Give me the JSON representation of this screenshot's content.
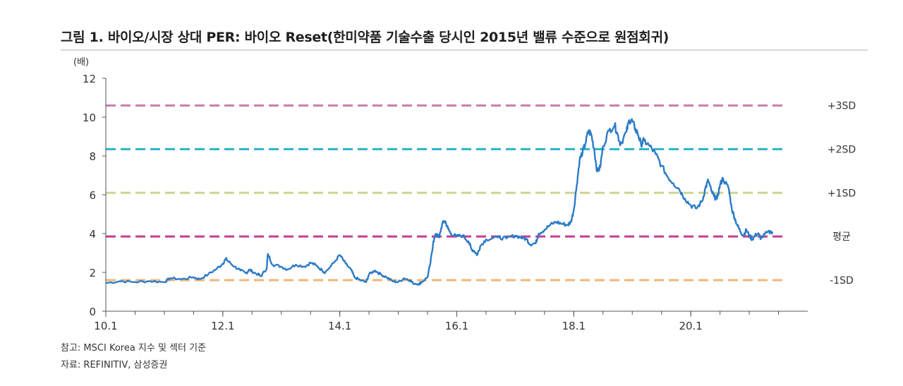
{
  "title": "그림 1. 바이오/시장 상대 PER: 바이오 Reset(한미약품 기술수출 당시인 2015년 밸류 수준으로 원점회귀)",
  "footnotes": {
    "note": "참고: MSCI Korea 지수 및 섹터 기준",
    "source": "자료: REFINITIV, 삼성증권"
  },
  "chart_data": {
    "type": "line",
    "title": "그림 1. 바이오/시장 상대 PER: 바이오 Reset(한미약품 기술수출 당시인 2015년 밸류 수준으로 원점회귀)",
    "ylabel": "(배)",
    "xlabel": "",
    "ylim": [
      0,
      12
    ],
    "xlim": [
      2010.0,
      2022.0
    ],
    "yticks": [
      "0",
      "2",
      "4",
      "6",
      "8",
      "10",
      "12"
    ],
    "xticks": [
      {
        "value": 2010.0,
        "label": "10.1"
      },
      {
        "value": 2012.0,
        "label": "12.1"
      },
      {
        "value": 2014.0,
        "label": "14.1"
      },
      {
        "value": 2016.0,
        "label": "16.1"
      },
      {
        "value": 2018.0,
        "label": "18.1"
      },
      {
        "value": 2020.0,
        "label": "20.1"
      }
    ],
    "grid": false,
    "line_color": "#2b7bc8",
    "reference_lines": [
      {
        "label": "+3SD",
        "value": 10.6,
        "color": "#c97fb0"
      },
      {
        "label": "+2SD",
        "value": 8.35,
        "color": "#29b5c9"
      },
      {
        "label": "+1SD",
        "value": 6.1,
        "color": "#c9d68f"
      },
      {
        "label": "평균",
        "value": 3.85,
        "color": "#c93a94"
      },
      {
        "label": "-1SD",
        "value": 1.6,
        "color": "#f0b67a"
      }
    ],
    "series": [
      {
        "points": [
          [
            2010.0,
            1.45
          ],
          [
            2010.25,
            1.55
          ],
          [
            2010.5,
            1.5
          ],
          [
            2010.75,
            1.55
          ],
          [
            2011.0,
            1.5
          ],
          [
            2011.1,
            1.7
          ],
          [
            2011.3,
            1.65
          ],
          [
            2011.5,
            1.75
          ],
          [
            2011.6,
            1.65
          ],
          [
            2011.75,
            1.9
          ],
          [
            2011.9,
            2.2
          ],
          [
            2012.0,
            2.45
          ],
          [
            2012.05,
            2.7
          ],
          [
            2012.1,
            2.55
          ],
          [
            2012.2,
            2.3
          ],
          [
            2012.3,
            2.1
          ],
          [
            2012.4,
            1.95
          ],
          [
            2012.45,
            2.15
          ],
          [
            2012.5,
            2.05
          ],
          [
            2012.6,
            1.9
          ],
          [
            2012.65,
            1.8
          ],
          [
            2012.75,
            2.2
          ],
          [
            2012.77,
            2.95
          ],
          [
            2012.85,
            2.4
          ],
          [
            2013.0,
            2.3
          ],
          [
            2013.1,
            2.15
          ],
          [
            2013.25,
            2.4
          ],
          [
            2013.4,
            2.3
          ],
          [
            2013.5,
            2.5
          ],
          [
            2013.6,
            2.35
          ],
          [
            2013.7,
            2.1
          ],
          [
            2013.75,
            2.0
          ],
          [
            2013.9,
            2.5
          ],
          [
            2014.0,
            2.9
          ],
          [
            2014.1,
            2.45
          ],
          [
            2014.2,
            2.1
          ],
          [
            2014.25,
            1.75
          ],
          [
            2014.35,
            1.6
          ],
          [
            2014.45,
            1.5
          ],
          [
            2014.5,
            1.9
          ],
          [
            2014.6,
            2.1
          ],
          [
            2014.7,
            1.9
          ],
          [
            2014.8,
            1.75
          ],
          [
            2014.9,
            1.55
          ],
          [
            2015.0,
            1.5
          ],
          [
            2015.1,
            1.7
          ],
          [
            2015.2,
            1.6
          ],
          [
            2015.25,
            1.45
          ],
          [
            2015.35,
            1.4
          ],
          [
            2015.4,
            1.5
          ],
          [
            2015.5,
            1.75
          ],
          [
            2015.55,
            2.5
          ],
          [
            2015.6,
            3.6
          ],
          [
            2015.65,
            4.0
          ],
          [
            2015.7,
            3.8
          ],
          [
            2015.75,
            4.5
          ],
          [
            2015.8,
            4.65
          ],
          [
            2015.85,
            4.25
          ],
          [
            2015.9,
            4.0
          ],
          [
            2016.0,
            3.85
          ],
          [
            2016.1,
            3.9
          ],
          [
            2016.2,
            3.6
          ],
          [
            2016.25,
            3.2
          ],
          [
            2016.3,
            3.1
          ],
          [
            2016.35,
            2.9
          ],
          [
            2016.4,
            3.35
          ],
          [
            2016.5,
            3.7
          ],
          [
            2016.7,
            3.8
          ],
          [
            2016.85,
            3.75
          ],
          [
            2017.0,
            3.9
          ],
          [
            2017.1,
            3.8
          ],
          [
            2017.2,
            3.7
          ],
          [
            2017.25,
            3.45
          ],
          [
            2017.35,
            3.5
          ],
          [
            2017.4,
            4.0
          ],
          [
            2017.5,
            4.2
          ],
          [
            2017.6,
            4.45
          ],
          [
            2017.7,
            4.6
          ],
          [
            2017.8,
            4.5
          ],
          [
            2017.9,
            4.45
          ],
          [
            2017.95,
            4.6
          ],
          [
            2018.0,
            5.2
          ],
          [
            2018.05,
            6.5
          ],
          [
            2018.1,
            7.8
          ],
          [
            2018.15,
            8.2
          ],
          [
            2018.2,
            8.65
          ],
          [
            2018.25,
            9.3
          ],
          [
            2018.3,
            9.1
          ],
          [
            2018.35,
            8.3
          ],
          [
            2018.4,
            7.2
          ],
          [
            2018.45,
            7.4
          ],
          [
            2018.5,
            8.5
          ],
          [
            2018.6,
            9.3
          ],
          [
            2018.7,
            9.6
          ],
          [
            2018.75,
            9.1
          ],
          [
            2018.8,
            8.6
          ],
          [
            2018.9,
            9.25
          ],
          [
            2018.95,
            9.85
          ],
          [
            2019.0,
            9.8
          ],
          [
            2019.05,
            9.4
          ],
          [
            2019.1,
            9.1
          ],
          [
            2019.15,
            8.6
          ],
          [
            2019.2,
            8.8
          ],
          [
            2019.3,
            8.5
          ],
          [
            2019.4,
            8.1
          ],
          [
            2019.5,
            7.5
          ],
          [
            2019.6,
            6.95
          ],
          [
            2019.7,
            6.6
          ],
          [
            2019.8,
            6.3
          ],
          [
            2019.9,
            5.8
          ],
          [
            2020.0,
            5.45
          ],
          [
            2020.1,
            5.3
          ],
          [
            2020.2,
            5.7
          ],
          [
            2020.25,
            6.35
          ],
          [
            2020.3,
            6.75
          ],
          [
            2020.35,
            6.2
          ],
          [
            2020.4,
            5.9
          ],
          [
            2020.45,
            5.8
          ],
          [
            2020.5,
            6.5
          ],
          [
            2020.55,
            6.85
          ],
          [
            2020.65,
            6.3
          ],
          [
            2020.7,
            5.3
          ],
          [
            2020.75,
            4.8
          ],
          [
            2020.8,
            4.4
          ],
          [
            2020.85,
            4.1
          ],
          [
            2020.9,
            3.9
          ],
          [
            2020.95,
            4.2
          ],
          [
            2021.0,
            3.9
          ],
          [
            2021.05,
            3.7
          ],
          [
            2021.1,
            3.9
          ],
          [
            2021.15,
            4.0
          ],
          [
            2021.2,
            3.75
          ],
          [
            2021.3,
            4.05
          ],
          [
            2021.4,
            4.1
          ]
        ]
      }
    ]
  }
}
